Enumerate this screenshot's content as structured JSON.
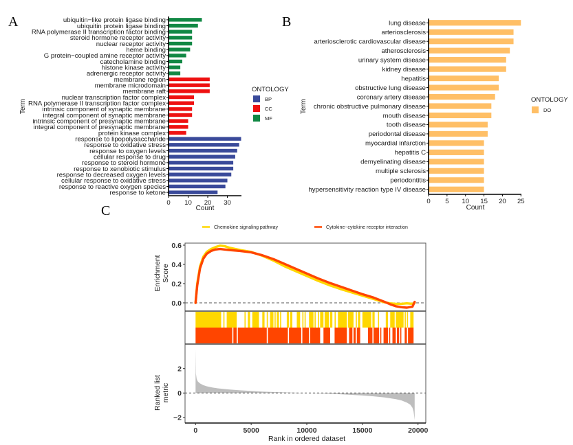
{
  "figure": {
    "panel_letters": [
      "A",
      "B",
      "C"
    ]
  },
  "chart_data": [
    {
      "panel": "A",
      "type": "bar",
      "orientation": "horizontal",
      "title": "",
      "xlabel": "Count",
      "ylabel": "Term",
      "xlim": [
        0,
        37
      ],
      "xticks": [
        0,
        10,
        20,
        30
      ],
      "grid": false,
      "legend": {
        "title": "ONTOLOGY",
        "placement": "right",
        "entries": [
          {
            "label": "BP",
            "color": "#3A4A9A"
          },
          {
            "label": "CC",
            "color": "#EE1111"
          },
          {
            "label": "MF",
            "color": "#118844"
          }
        ]
      },
      "categories": [
        "ubiquitin−like protein ligase binding",
        "ubiquitin protein ligase binding",
        "RNA polymerase II transcription factor binding",
        "steroid hormone receptor activity",
        "nuclear receptor activity",
        "heme binding",
        "G protein−coupled amine receptor activity",
        "catecholamine binding",
        "histone kinase activity",
        "adrenergic receptor activity",
        "membrane region",
        "membrane microdomain",
        "membrane raft",
        "nuclear transcription factor complex",
        "RNA polymerase II transcription factor complex",
        "intrinsic component of synaptic membrane",
        "integral component of synaptic membrane",
        "intrinsic component of presynaptic membrane",
        "integral component of presynaptic membrane",
        "protein kinase complex",
        "response to lipopolysaccharide",
        "response to oxidative stress",
        "response to oxygen levels",
        "cellular response to drug",
        "response to steroid hormone",
        "response to xenobiotic stimulus",
        "response to decreased oxygen levels",
        "cellular response to oxidative stress",
        "response to reactive oxygen species",
        "response to ketone"
      ],
      "values": [
        17,
        15,
        12,
        12,
        12,
        11,
        9,
        7,
        6,
        6,
        21,
        21,
        21,
        13,
        13,
        12,
        12,
        10,
        10,
        9,
        37,
        36,
        35,
        34,
        33,
        33,
        32,
        30,
        29,
        25
      ],
      "groups": [
        "MF",
        "MF",
        "MF",
        "MF",
        "MF",
        "MF",
        "MF",
        "MF",
        "MF",
        "MF",
        "CC",
        "CC",
        "CC",
        "CC",
        "CC",
        "CC",
        "CC",
        "CC",
        "CC",
        "CC",
        "BP",
        "BP",
        "BP",
        "BP",
        "BP",
        "BP",
        "BP",
        "BP",
        "BP",
        "BP"
      ]
    },
    {
      "panel": "B",
      "type": "bar",
      "orientation": "horizontal",
      "title": "",
      "xlabel": "Count",
      "ylabel": "Term",
      "xlim": [
        0,
        25
      ],
      "xticks": [
        0,
        5,
        10,
        15,
        20,
        25
      ],
      "grid": false,
      "legend": {
        "title": "ONTOLOGY",
        "placement": "right",
        "entries": [
          {
            "label": "DO",
            "color": "#FFBF66"
          }
        ]
      },
      "categories": [
        "lung disease",
        "arteriosclerosis",
        "arteriosclerotic cardiovascular disease",
        "atherosclerosis",
        "urinary system disease",
        "kidney disease",
        "hepatitis",
        "obstructive lung disease",
        "coronary artery disease",
        "chronic obstructive pulmonary disease",
        "mouth disease",
        "tooth disease",
        "periodontal disease",
        "myocardial infarction",
        "hepatitis C",
        "demyelinating disease",
        "multiple sclerosis",
        "periodontitis",
        "hypersensitivity reaction type IV disease"
      ],
      "values": [
        25,
        23,
        23,
        22,
        21,
        21,
        19,
        19,
        18,
        17,
        17,
        16,
        16,
        15,
        15,
        15,
        15,
        15,
        15
      ],
      "groups": [
        "DO",
        "DO",
        "DO",
        "DO",
        "DO",
        "DO",
        "DO",
        "DO",
        "DO",
        "DO",
        "DO",
        "DO",
        "DO",
        "DO",
        "DO",
        "DO",
        "DO",
        "DO",
        "DO"
      ]
    },
    {
      "panel": "C",
      "type": "line",
      "subtype": "GSEA enrichment plot",
      "legend": {
        "placement": "top",
        "entries": [
          {
            "label": "Chemokine signaling pathway",
            "color": "#FFD700"
          },
          {
            "label": "Cytokine−cytokine receptor interaction",
            "color": "#FF4500"
          }
        ]
      },
      "xlabel": "Rank in ordered dataset",
      "xlim": [
        -900,
        20500
      ],
      "xticks": [
        0,
        5000,
        10000,
        15000,
        20000
      ],
      "enrichment": {
        "ylabel": "Enrichment\nScore",
        "ylim": [
          -0.08,
          0.62
        ],
        "yticks": [
          0.0,
          0.2,
          0.4,
          0.6
        ],
        "series": [
          {
            "name": "Chemokine signaling pathway",
            "x": [
              0,
              150,
              400,
              700,
              1000,
              1400,
              1800,
              2200,
              2600,
              3000,
              4000,
              5000,
              6000,
              7000,
              8000,
              9000,
              10000,
              11000,
              12000,
              13000,
              14000,
              15000,
              16000,
              17000,
              17500,
              18000,
              18500,
              19000,
              19500,
              19700
            ],
            "y": [
              0.0,
              0.2,
              0.38,
              0.48,
              0.53,
              0.56,
              0.58,
              0.595,
              0.59,
              0.575,
              0.55,
              0.53,
              0.49,
              0.44,
              0.38,
              0.33,
              0.28,
              0.23,
              0.185,
              0.145,
              0.11,
              0.075,
              0.04,
              0.005,
              -0.005,
              -0.01,
              -0.01,
              -0.005,
              -0.01,
              0.0
            ]
          },
          {
            "name": "Cytokine−cytokine receptor interaction",
            "x": [
              0,
              150,
              400,
              700,
              1000,
              1400,
              1800,
              2200,
              2600,
              3000,
              4000,
              5000,
              6000,
              7000,
              8000,
              9000,
              10000,
              11000,
              12000,
              13000,
              14000,
              15000,
              16000,
              17000,
              17500,
              18000,
              18500,
              19000,
              19500,
              19700
            ],
            "y": [
              0.0,
              0.18,
              0.36,
              0.46,
              0.51,
              0.54,
              0.555,
              0.56,
              0.555,
              0.55,
              0.54,
              0.525,
              0.495,
              0.455,
              0.405,
              0.355,
              0.305,
              0.255,
              0.21,
              0.17,
              0.13,
              0.09,
              0.055,
              0.01,
              -0.015,
              -0.035,
              -0.045,
              -0.05,
              -0.04,
              0.01
            ]
          }
        ],
        "zero_line": "dashed"
      },
      "hits": [
        {
          "name": "Chemokine signaling pathway",
          "ranges": [
            [
              0,
              2300
            ],
            [
              2500,
              2600
            ],
            [
              2800,
              3700
            ],
            [
              4400,
              4500
            ],
            [
              4700,
              4900
            ],
            [
              5100,
              5700
            ],
            [
              6000,
              6200
            ],
            [
              6400,
              6500
            ],
            [
              6700,
              7000
            ],
            [
              7100,
              7200
            ],
            [
              7300,
              7500
            ],
            [
              7600,
              7700
            ],
            [
              8200,
              8400
            ],
            [
              8500,
              8700
            ],
            [
              9100,
              9400
            ],
            [
              9600,
              9700
            ],
            [
              9800,
              9900
            ],
            [
              10200,
              10600
            ],
            [
              10700,
              10800
            ],
            [
              11000,
              11100
            ],
            [
              11200,
              11500
            ],
            [
              11600,
              12000
            ],
            [
              12100,
              12300
            ],
            [
              12500,
              12600
            ],
            [
              12800,
              13600
            ],
            [
              13700,
              14200
            ],
            [
              14400,
              14500
            ],
            [
              14600,
              14800
            ],
            [
              15000,
              15800
            ],
            [
              15900,
              16100
            ],
            [
              16400,
              16500
            ],
            [
              17100,
              17300
            ],
            [
              17500,
              17900
            ],
            [
              18000,
              18700
            ],
            [
              18800,
              18900
            ],
            [
              19000,
              19100
            ],
            [
              19300,
              19600
            ]
          ]
        },
        {
          "name": "Cytokine−cytokine receptor interaction",
          "ranges": [
            [
              0,
              3300
            ],
            [
              3400,
              3700
            ],
            [
              3800,
              6400
            ],
            [
              6500,
              8300
            ],
            [
              8400,
              9500
            ],
            [
              9600,
              10200
            ],
            [
              10300,
              11200
            ],
            [
              11500,
              12100
            ],
            [
              12500,
              13600
            ],
            [
              13800,
              14100
            ],
            [
              14200,
              14400
            ],
            [
              14500,
              14800
            ],
            [
              15500,
              15900
            ],
            [
              16000,
              16500
            ],
            [
              16600,
              16700
            ],
            [
              16900,
              17300
            ],
            [
              17400,
              17500
            ],
            [
              17700,
              18000
            ],
            [
              18100,
              18300
            ],
            [
              18400,
              18500
            ],
            [
              18800,
              19000
            ],
            [
              19100,
              19600
            ]
          ]
        }
      ],
      "ranked_metric": {
        "ylabel": "Ranked list\nmetric",
        "ylim": [
          -2.5,
          3.8
        ],
        "yticks": [
          -2,
          0,
          2
        ],
        "x": [
          0,
          30,
          100,
          200,
          400,
          700,
          1000,
          1500,
          2000,
          3000,
          4000,
          5000,
          6000,
          7000,
          8000,
          9000,
          10000,
          11000,
          12000,
          13000,
          14000,
          15000,
          16000,
          17000,
          18000,
          18500,
          19000,
          19300,
          19500,
          19600,
          19700
        ],
        "y": [
          3.6,
          1.6,
          1.15,
          0.95,
          0.78,
          0.64,
          0.55,
          0.45,
          0.38,
          0.29,
          0.22,
          0.17,
          0.12,
          0.08,
          0.05,
          0.02,
          0.0,
          -0.03,
          -0.06,
          -0.1,
          -0.15,
          -0.2,
          -0.27,
          -0.36,
          -0.5,
          -0.6,
          -0.78,
          -0.95,
          -1.2,
          -1.5,
          -2.2
        ],
        "zero_line": "dashed"
      }
    }
  ]
}
